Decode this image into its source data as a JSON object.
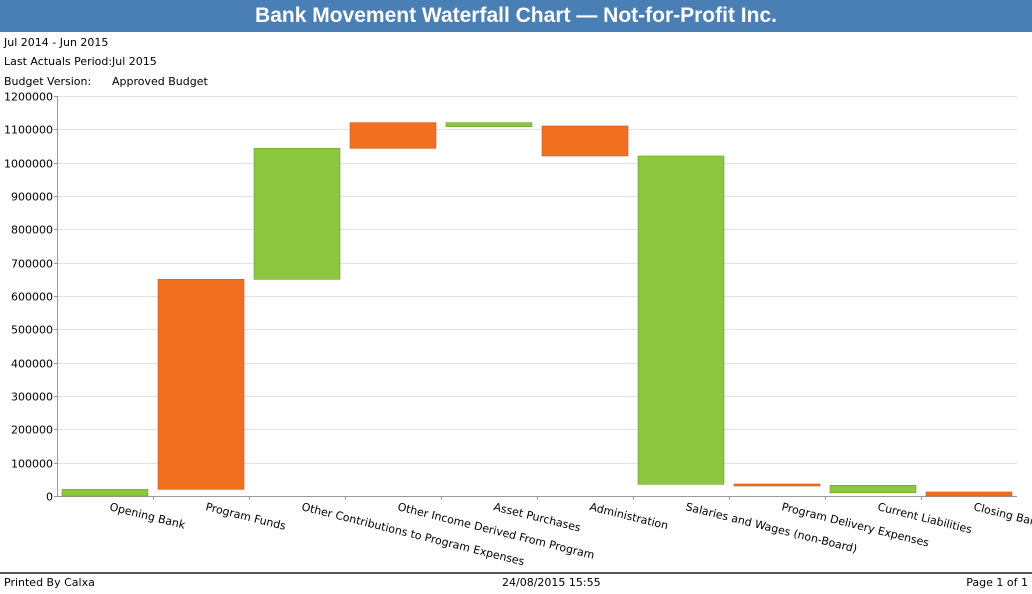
{
  "header": {
    "title": "Bank Movement Waterfall Chart — Not-for-Profit Inc.",
    "period": "Jul 2014 - Jun 2015",
    "last_actuals_label": "Last Actuals Period:",
    "last_actuals_value": "Jul 2015",
    "budget_label": "Budget Version:",
    "budget_value": "Approved Budget"
  },
  "footer": {
    "printed_by": "Printed By Calxa",
    "timestamp": "24/08/2015 15:55",
    "page": "Page 1 of 1"
  },
  "colors": {
    "increase": "#8dc63f",
    "decrease": "#f37021",
    "gridline": "#e3e3e3",
    "axis": "#999999"
  },
  "chart_data": {
    "type": "waterfall",
    "title": "",
    "xlabel": "",
    "ylabel": "",
    "ylim": [
      0,
      1200000
    ],
    "ytick_step": 100000,
    "yticks": [
      "0",
      "100000",
      "200000",
      "300000",
      "400000",
      "500000",
      "600000",
      "700000",
      "800000",
      "900000",
      "1000000",
      "1100000",
      "1200000"
    ],
    "grid": true,
    "categories": [
      "Opening Bank",
      "Program Funds",
      "Other Contributions to Program Expenses",
      "Other Income Derived From Program",
      "Asset Purchases",
      "Administration",
      "Salaries and Wages (non-Board)",
      "Program Delivery Expenses",
      "Current Liabilities",
      "Closing Bank"
    ],
    "bars": [
      {
        "category": "Opening Bank",
        "low": 0,
        "high": 20000,
        "direction": "increase"
      },
      {
        "category": "Program Funds",
        "low": 20000,
        "high": 650000,
        "direction": "decrease"
      },
      {
        "category": "Other Contributions to Program Expenses",
        "low": 650000,
        "high": 1043000,
        "direction": "increase"
      },
      {
        "category": "Other Income Derived From Program",
        "low": 1043000,
        "high": 1120000,
        "direction": "decrease"
      },
      {
        "category": "Asset Purchases",
        "low": 1108000,
        "high": 1120000,
        "direction": "increase"
      },
      {
        "category": "Administration",
        "low": 1020000,
        "high": 1110000,
        "direction": "decrease"
      },
      {
        "category": "Salaries and Wages (non-Board)",
        "low": 35000,
        "high": 1020000,
        "direction": "increase"
      },
      {
        "category": "Program Delivery Expenses",
        "low": 32000,
        "high": 36000,
        "direction": "decrease"
      },
      {
        "category": "Current Liabilities",
        "low": 10000,
        "high": 32000,
        "direction": "increase"
      },
      {
        "category": "Closing Bank",
        "low": 0,
        "high": 12000,
        "direction": "decrease"
      }
    ]
  }
}
